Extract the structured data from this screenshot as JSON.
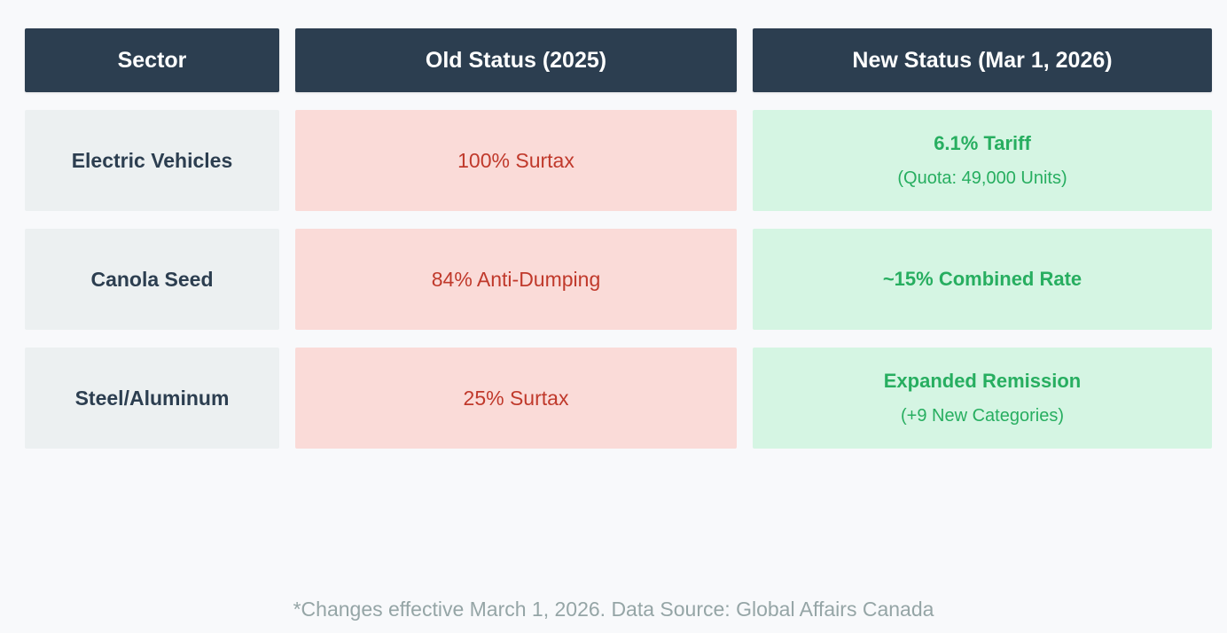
{
  "chart_data": {
    "type": "table",
    "columns": [
      "Sector",
      "Old Status (2025)",
      "New Status (Mar 1, 2026)"
    ],
    "rows": [
      [
        "Electric Vehicles",
        "100% Surtax",
        "6.1% Tariff (Quota: 49,000 Units)"
      ],
      [
        "Canola Seed",
        "84% Anti-Dumping",
        "~15% Combined Rate"
      ],
      [
        "Steel/Aluminum",
        "25% Surtax",
        "Expanded Remission (+9 New Categories)"
      ]
    ],
    "footnote": "*Changes effective March 1, 2026. Data Source: Global Affairs Canada",
    "legend_position": "none",
    "colors": {
      "header_bg": "#2c3e50",
      "header_text": "#ffffff",
      "sector_bg": "#ecf0f1",
      "sector_text": "#2c3e50",
      "old_status_bg": "#fadbd8",
      "old_status_text": "#c0392b",
      "new_status_bg": "#d5f5e3",
      "new_status_text": "#27ae60",
      "page_bg": "#f8f9fb",
      "footer_text": "#95a5a6"
    }
  },
  "table": {
    "columns": [
      "Sector",
      "Old Status (2025)",
      "New Status (Mar 1, 2026)"
    ],
    "rows": [
      {
        "sector": "Electric Vehicles",
        "old_status": "100% Surtax",
        "new_status_main": "6.1% Tariff",
        "new_status_sub": "(Quota: 49,000 Units)"
      },
      {
        "sector": "Canola Seed",
        "old_status": "84% Anti-Dumping",
        "new_status_main": "~15% Combined Rate",
        "new_status_sub": ""
      },
      {
        "sector": "Steel/Aluminum",
        "old_status": "25% Surtax",
        "new_status_main": "Expanded Remission",
        "new_status_sub": "(+9 New Categories)"
      }
    ]
  },
  "footer": {
    "note": "*Changes effective March 1, 2026. Data Source: Global Affairs Canada"
  }
}
